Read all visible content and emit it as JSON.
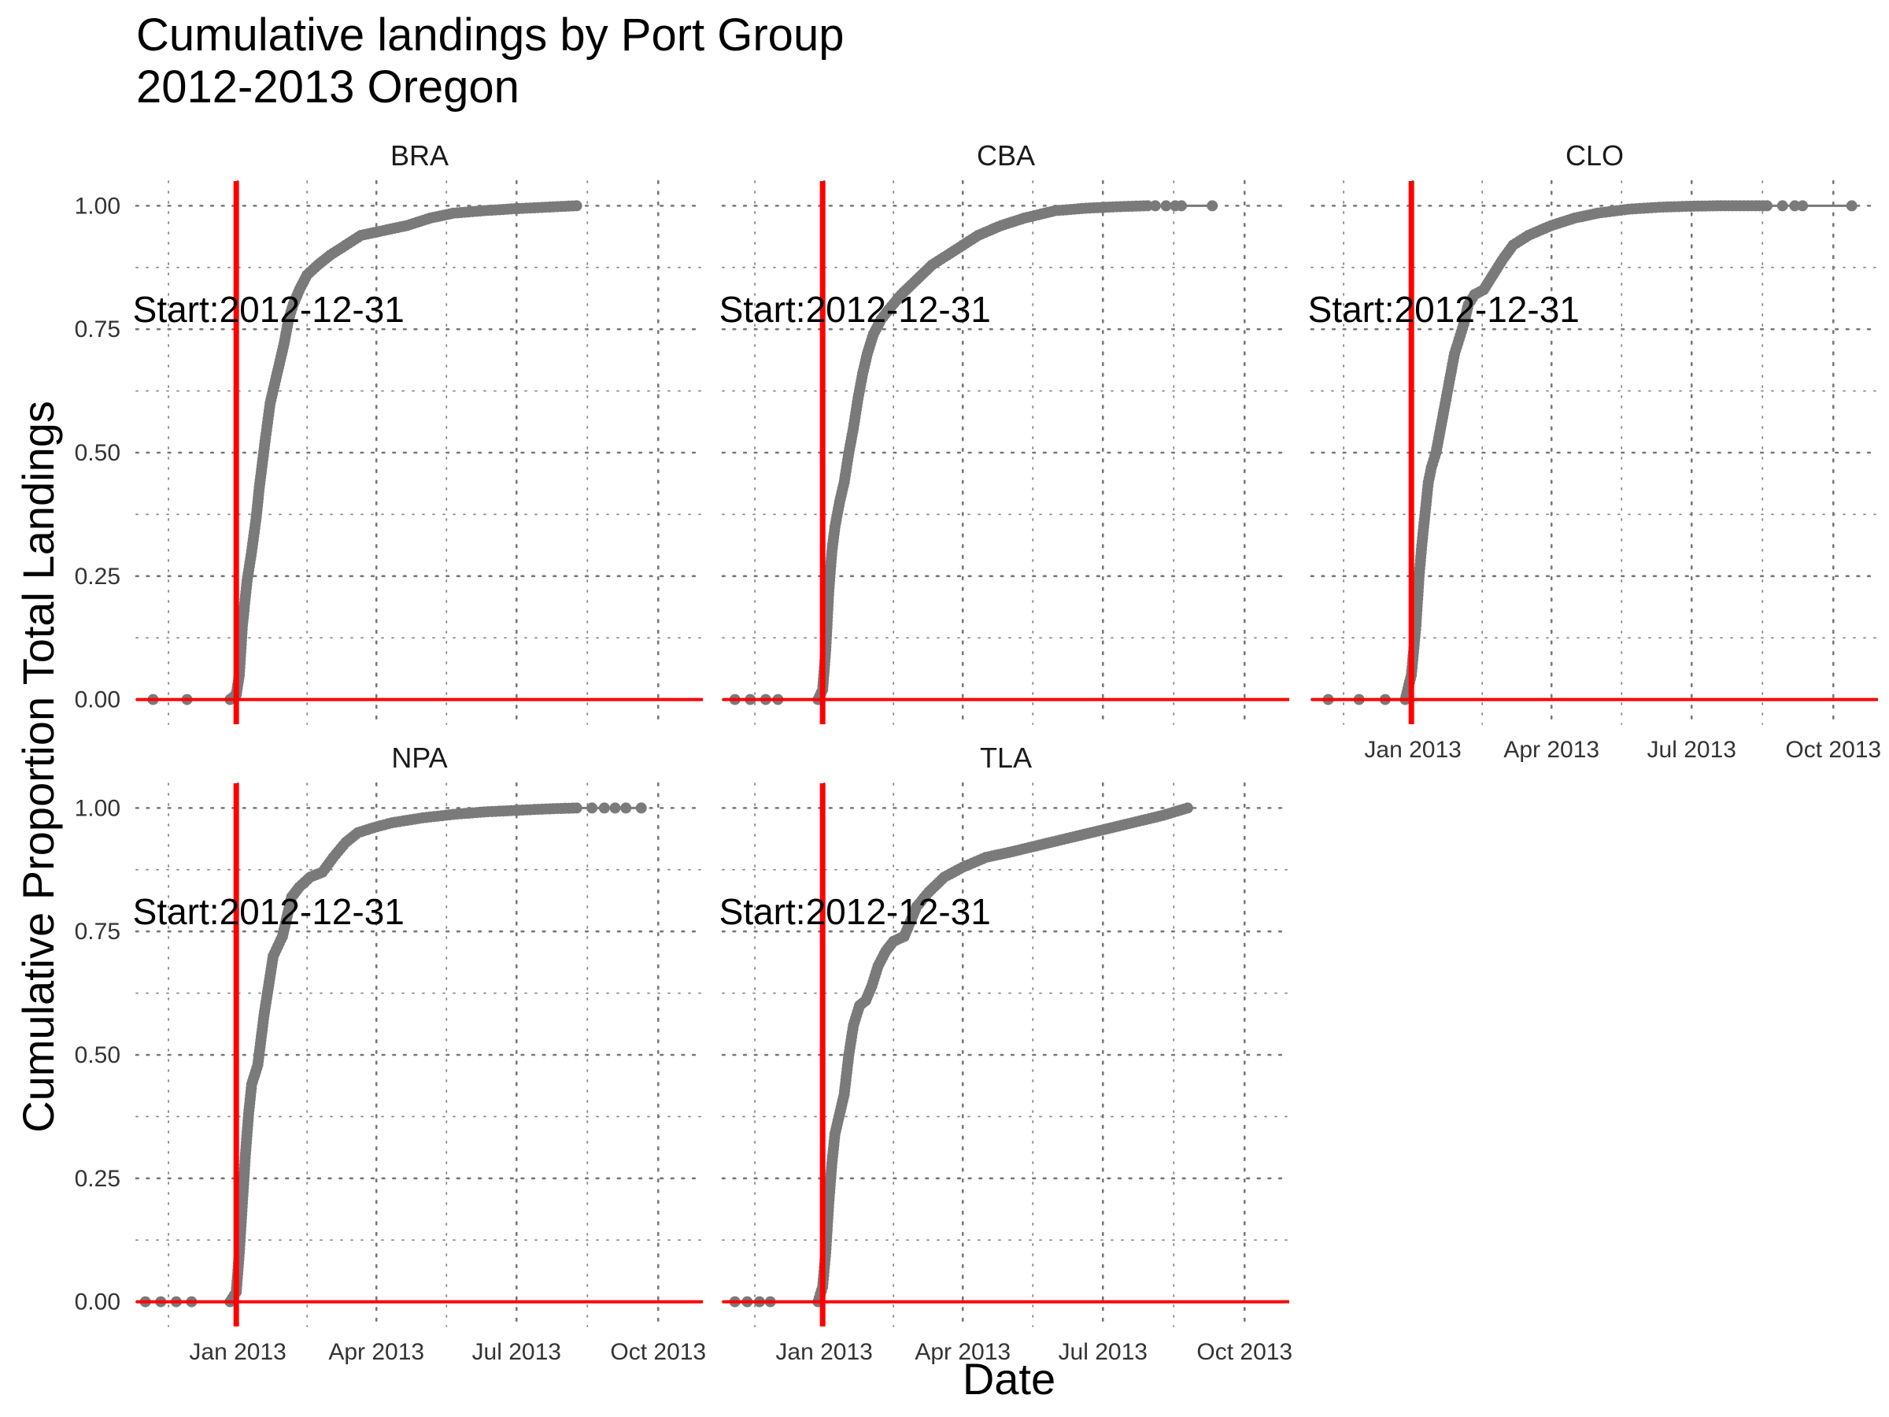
{
  "chart_data": {
    "type": "line",
    "title": "Cumulative landings by Port Group",
    "subtitle": "2012-2013 Oregon",
    "xlabel": "Date",
    "ylabel": "Cumulative Proportion Total Landings",
    "x_ticks": [
      "Jan 2013",
      "Apr 2013",
      "Jul 2013",
      "Oct 2013"
    ],
    "x_tick_days": [
      0,
      90,
      181,
      273
    ],
    "xlim_days": [
      -66,
      302
    ],
    "ylim": [
      -0.05,
      1.05
    ],
    "y_ticks": [
      0,
      0.25,
      0.5,
      0.75,
      1
    ],
    "y_tick_labels": [
      "0.00",
      "0.25",
      "0.50",
      "0.75",
      "1.00"
    ],
    "reference_lines": {
      "vline_date": "2012-12-31",
      "vline_day": -1,
      "hline_y": 0,
      "color": "#ff0000"
    },
    "annotation_text": "Start:2012-12-31",
    "annotation_position": {
      "day": 20,
      "y": 0.79
    },
    "point_color": "#7a7a7a",
    "panels": [
      {
        "name": "BRA",
        "start_points": [
          [
            -55,
            0
          ],
          [
            -33,
            0
          ]
        ],
        "end_points": [],
        "points": [
          [
            -5,
            0
          ],
          [
            -1,
            0.01
          ],
          [
            1,
            0.05
          ],
          [
            3,
            0.15
          ],
          [
            6,
            0.24
          ],
          [
            9,
            0.3
          ],
          [
            12,
            0.37
          ],
          [
            14,
            0.43
          ],
          [
            16,
            0.48
          ],
          [
            18,
            0.53
          ],
          [
            21,
            0.6
          ],
          [
            24,
            0.64
          ],
          [
            27,
            0.68
          ],
          [
            30,
            0.72
          ],
          [
            33,
            0.77
          ],
          [
            36,
            0.8
          ],
          [
            40,
            0.83
          ],
          [
            45,
            0.86
          ],
          [
            52,
            0.88
          ],
          [
            60,
            0.9
          ],
          [
            70,
            0.92
          ],
          [
            80,
            0.94
          ],
          [
            95,
            0.95
          ],
          [
            110,
            0.96
          ],
          [
            125,
            0.975
          ],
          [
            140,
            0.985
          ],
          [
            160,
            0.99
          ],
          [
            180,
            0.994
          ],
          [
            200,
            0.997
          ],
          [
            220,
            1.0
          ]
        ]
      },
      {
        "name": "CBA",
        "start_points": [
          [
            -58,
            0
          ],
          [
            -48,
            0
          ],
          [
            -38,
            0
          ],
          [
            -30,
            0
          ]
        ],
        "end_points": [
          [
            215,
            1.0
          ],
          [
            222,
            1.0
          ],
          [
            228,
            1.0
          ],
          [
            232,
            1.0
          ],
          [
            252,
            1.0
          ]
        ],
        "points": [
          [
            -4,
            0
          ],
          [
            -1,
            0.02
          ],
          [
            1,
            0.1
          ],
          [
            3,
            0.22
          ],
          [
            5,
            0.3
          ],
          [
            7,
            0.35
          ],
          [
            10,
            0.4
          ],
          [
            13,
            0.44
          ],
          [
            16,
            0.5
          ],
          [
            19,
            0.55
          ],
          [
            22,
            0.61
          ],
          [
            25,
            0.66
          ],
          [
            28,
            0.7
          ],
          [
            32,
            0.74
          ],
          [
            37,
            0.77
          ],
          [
            42,
            0.79
          ],
          [
            50,
            0.82
          ],
          [
            60,
            0.85
          ],
          [
            70,
            0.88
          ],
          [
            80,
            0.9
          ],
          [
            90,
            0.92
          ],
          [
            100,
            0.94
          ],
          [
            115,
            0.96
          ],
          [
            130,
            0.975
          ],
          [
            150,
            0.99
          ],
          [
            170,
            0.995
          ],
          [
            190,
            0.998
          ],
          [
            210,
            1.0
          ]
        ]
      },
      {
        "name": "CLO",
        "start_points": [
          [
            -55,
            0
          ],
          [
            -35,
            0
          ],
          [
            -18,
            0
          ]
        ],
        "end_points": [
          [
            240,
            1.0
          ],
          [
            248,
            1.0
          ],
          [
            253,
            1.0
          ],
          [
            285,
            1.0
          ]
        ],
        "points": [
          [
            -5,
            0
          ],
          [
            -1,
            0.05
          ],
          [
            2,
            0.15
          ],
          [
            4,
            0.25
          ],
          [
            6,
            0.32
          ],
          [
            8,
            0.38
          ],
          [
            10,
            0.44
          ],
          [
            12,
            0.47
          ],
          [
            15,
            0.5
          ],
          [
            18,
            0.55
          ],
          [
            21,
            0.6
          ],
          [
            24,
            0.65
          ],
          [
            27,
            0.7
          ],
          [
            30,
            0.73
          ],
          [
            33,
            0.76
          ],
          [
            36,
            0.8
          ],
          [
            40,
            0.82
          ],
          [
            46,
            0.83
          ],
          [
            52,
            0.86
          ],
          [
            58,
            0.89
          ],
          [
            65,
            0.92
          ],
          [
            75,
            0.94
          ],
          [
            90,
            0.96
          ],
          [
            105,
            0.975
          ],
          [
            120,
            0.985
          ],
          [
            140,
            0.993
          ],
          [
            160,
            0.997
          ],
          [
            180,
            0.999
          ],
          [
            200,
            1.0
          ],
          [
            230,
            1.0
          ]
        ]
      },
      {
        "name": "NPA",
        "start_points": [
          [
            -60,
            0
          ],
          [
            -50,
            0
          ],
          [
            -40,
            0
          ],
          [
            -30,
            0
          ]
        ],
        "end_points": [
          [
            230,
            1.0
          ],
          [
            238,
            1.0
          ],
          [
            245,
            1.0
          ],
          [
            252,
            1.0
          ],
          [
            262,
            1.0
          ]
        ],
        "points": [
          [
            -5,
            0
          ],
          [
            -1,
            0.02
          ],
          [
            1,
            0.1
          ],
          [
            3,
            0.2
          ],
          [
            5,
            0.3
          ],
          [
            7,
            0.38
          ],
          [
            9,
            0.44
          ],
          [
            11,
            0.46
          ],
          [
            13,
            0.48
          ],
          [
            15,
            0.53
          ],
          [
            17,
            0.58
          ],
          [
            19,
            0.62
          ],
          [
            21,
            0.66
          ],
          [
            23,
            0.7
          ],
          [
            26,
            0.72
          ],
          [
            29,
            0.74
          ],
          [
            32,
            0.78
          ],
          [
            35,
            0.82
          ],
          [
            40,
            0.84
          ],
          [
            47,
            0.86
          ],
          [
            55,
            0.87
          ],
          [
            62,
            0.9
          ],
          [
            70,
            0.93
          ],
          [
            78,
            0.95
          ],
          [
            88,
            0.96
          ],
          [
            100,
            0.97
          ],
          [
            120,
            0.98
          ],
          [
            140,
            0.987
          ],
          [
            160,
            0.992
          ],
          [
            180,
            0.995
          ],
          [
            200,
            0.998
          ],
          [
            220,
            1.0
          ]
        ]
      },
      {
        "name": "TLA",
        "start_points": [
          [
            -58,
            0
          ],
          [
            -50,
            0
          ],
          [
            -42,
            0
          ],
          [
            -35,
            0
          ]
        ],
        "end_points": [],
        "points": [
          [
            -4,
            0
          ],
          [
            -1,
            0.03
          ],
          [
            1,
            0.1
          ],
          [
            3,
            0.2
          ],
          [
            5,
            0.28
          ],
          [
            7,
            0.34
          ],
          [
            10,
            0.38
          ],
          [
            13,
            0.42
          ],
          [
            16,
            0.5
          ],
          [
            19,
            0.56
          ],
          [
            23,
            0.6
          ],
          [
            27,
            0.61
          ],
          [
            31,
            0.64
          ],
          [
            35,
            0.68
          ],
          [
            40,
            0.71
          ],
          [
            45,
            0.73
          ],
          [
            52,
            0.74
          ],
          [
            56,
            0.77
          ],
          [
            60,
            0.8
          ],
          [
            68,
            0.83
          ],
          [
            78,
            0.86
          ],
          [
            90,
            0.88
          ],
          [
            105,
            0.9
          ],
          [
            120,
            0.91
          ],
          [
            140,
            0.925
          ],
          [
            160,
            0.94
          ],
          [
            180,
            0.955
          ],
          [
            200,
            0.97
          ],
          [
            220,
            0.985
          ],
          [
            236,
            1.0
          ]
        ]
      }
    ]
  }
}
